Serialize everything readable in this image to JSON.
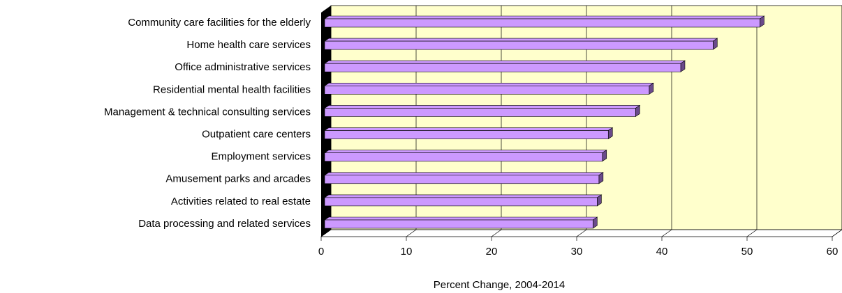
{
  "chart_data": {
    "type": "bar",
    "orientation": "horizontal",
    "x_label": "Percent Change, 2004-2014",
    "categories": [
      "Community care facilities for the elderly",
      "Home health care services",
      "Office administrative services",
      "Residential mental health facilities",
      "Management & technical consulting services",
      "Outpatient care centers",
      "Employment services",
      "Amusement parks and arcades",
      "Activities related to real estate",
      "Data processing and related services"
    ],
    "values": [
      51.1,
      45.6,
      41.8,
      38.1,
      36.5,
      33.3,
      32.6,
      32.2,
      32.0,
      31.5
    ],
    "color": "#cc99ff",
    "xlim": [
      0,
      60
    ],
    "xticks": [
      0,
      10,
      20,
      30,
      40,
      50,
      60
    ],
    "grid": true
  }
}
